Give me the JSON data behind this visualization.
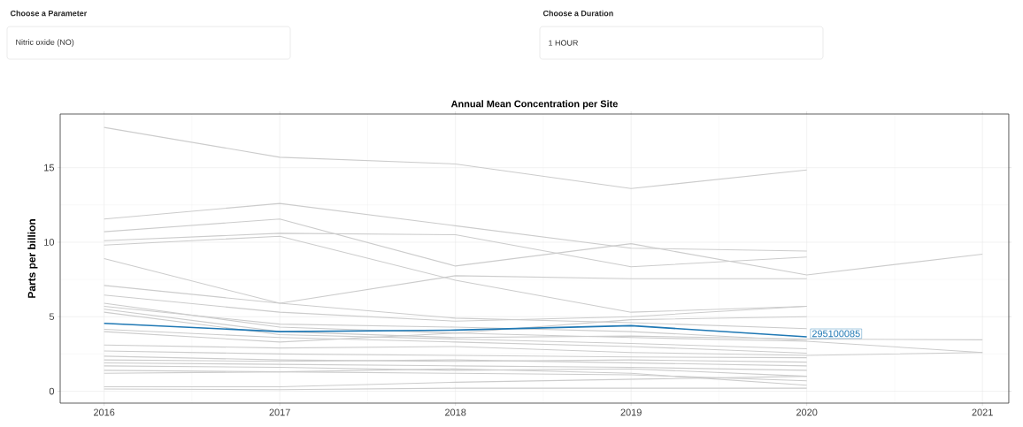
{
  "chart_data": {
    "type": "line",
    "title": "Annual Mean Concentration per Site",
    "ylabel": "Parts per billion",
    "annotations": [
      "Choose a Parameter",
      "Nitric oxide (NO)",
      "Choose a Duration",
      "1 HOUR"
    ],
    "xlim": [
      2015.75,
      2021.15
    ],
    "ylim": [
      -0.8,
      18.6
    ],
    "xticks": [
      2016,
      2017,
      2018,
      2019,
      2020,
      2021
    ],
    "yticks": [
      0,
      5,
      10,
      15
    ],
    "grid": true,
    "series": [
      {
        "color": "#cccccc",
        "x": [
          2016,
          2017,
          2018,
          2019,
          2020
        ],
        "values": [
          17.7,
          15.7,
          15.25,
          13.6,
          14.85
        ]
      },
      {
        "color": "#cccccc",
        "x": [
          2016,
          2017,
          2018,
          2019,
          2020
        ],
        "values": [
          11.55,
          12.6,
          11.1,
          9.6,
          9.4
        ]
      },
      {
        "color": "#cccccc",
        "x": [
          2016,
          2017,
          2018,
          2019,
          2020,
          2021
        ],
        "values": [
          10.7,
          11.55,
          8.4,
          9.9,
          7.8,
          9.2
        ]
      },
      {
        "color": "#cccccc",
        "x": [
          2016,
          2017,
          2018,
          2019,
          2020
        ],
        "values": [
          10.1,
          10.6,
          10.5,
          8.35,
          9.0
        ]
      },
      {
        "color": "#cccccc",
        "x": [
          2016,
          2017,
          2018,
          2019,
          2020
        ],
        "values": [
          9.8,
          10.4,
          7.45,
          5.3,
          5.7
        ]
      },
      {
        "color": "#cccccc",
        "x": [
          2016,
          2017,
          2018,
          2019,
          2020
        ],
        "values": [
          8.9,
          5.9,
          7.75,
          7.55,
          7.55
        ]
      },
      {
        "color": "#cccccc",
        "x": [
          2016,
          2017,
          2018,
          2019,
          2020
        ],
        "values": [
          7.1,
          5.9,
          4.9,
          4.6,
          4.2
        ]
      },
      {
        "color": "#cccccc",
        "x": [
          2016,
          2017,
          2018,
          2019,
          2020
        ],
        "values": [
          6.45,
          5.3,
          4.7,
          5.0,
          5.7
        ]
      },
      {
        "color": "#cccccc",
        "x": [
          2016,
          2017,
          2018,
          2019,
          2020
        ],
        "values": [
          5.9,
          4.3,
          3.9,
          4.8,
          5.0
        ]
      },
      {
        "color": "#cccccc",
        "x": [
          2016,
          2017,
          2018,
          2019,
          2020
        ],
        "values": [
          5.7,
          4.5,
          4.3,
          4.0,
          3.4
        ]
      },
      {
        "color": "#cccccc",
        "x": [
          2016,
          2017,
          2018,
          2019,
          2020,
          2021
        ],
        "values": [
          5.5,
          4.0,
          3.6,
          3.7,
          3.5,
          3.45
        ]
      },
      {
        "color": "#cccccc",
        "x": [
          2016,
          2017,
          2018,
          2019,
          2020
        ],
        "values": [
          5.3,
          3.8,
          3.5,
          3.2,
          2.85
        ]
      },
      {
        "color": "#cccccc",
        "x": [
          2016,
          2017,
          2018,
          2019,
          2020
        ],
        "values": [
          4.15,
          3.6,
          3.3,
          3.0,
          2.55
        ]
      },
      {
        "color": "#cccccc",
        "x": [
          2016,
          2017,
          2018,
          2019,
          2020,
          2021
        ],
        "values": [
          4.0,
          3.3,
          3.9,
          3.6,
          3.35,
          2.6
        ]
      },
      {
        "color": "#cccccc",
        "x": [
          2016,
          2017,
          2018,
          2019,
          2020,
          2021
        ],
        "values": [
          3.1,
          2.9,
          3.0,
          2.6,
          2.4,
          2.6
        ]
      },
      {
        "color": "#cccccc",
        "x": [
          2016,
          2017,
          2018,
          2019,
          2020
        ],
        "values": [
          2.7,
          2.5,
          2.4,
          2.3,
          2.25
        ]
      },
      {
        "color": "#cccccc",
        "x": [
          2016,
          2017,
          2018,
          2019,
          2020
        ],
        "values": [
          2.35,
          2.1,
          2.0,
          2.1,
          1.95
        ]
      },
      {
        "color": "#cccccc",
        "x": [
          2016,
          2017,
          2018,
          2019,
          2020
        ],
        "values": [
          2.1,
          2.0,
          2.1,
          1.9,
          1.7
        ]
      },
      {
        "color": "#cccccc",
        "x": [
          2016,
          2017,
          2018,
          2019,
          2020
        ],
        "values": [
          1.9,
          1.8,
          1.7,
          1.6,
          1.4
        ]
      },
      {
        "color": "#cccccc",
        "x": [
          2016,
          2017,
          2018,
          2019,
          2020
        ],
        "values": [
          1.7,
          1.6,
          1.4,
          1.5,
          1.0
        ]
      },
      {
        "color": "#cccccc",
        "x": [
          2016,
          2017,
          2018,
          2019,
          2020
        ],
        "values": [
          1.4,
          1.3,
          1.2,
          1.1,
          0.7
        ]
      },
      {
        "color": "#cccccc",
        "x": [
          2016,
          2017,
          2018,
          2019,
          2020
        ],
        "values": [
          1.2,
          1.3,
          1.5,
          1.2,
          0.4
        ]
      },
      {
        "color": "#cccccc",
        "x": [
          2016,
          2017,
          2018,
          2019,
          2020
        ],
        "values": [
          0.3,
          0.3,
          0.6,
          0.8,
          1.0
        ]
      },
      {
        "color": "#cccccc",
        "x": [
          2016,
          2017,
          2018,
          2019,
          2020
        ],
        "values": [
          0.15,
          0.1,
          0.2,
          0.2,
          0.2
        ]
      },
      {
        "name": "295100085",
        "color": "#1f78b4",
        "x": [
          2016,
          2017,
          2018,
          2019,
          2020
        ],
        "values": [
          4.55,
          4.0,
          4.1,
          4.4,
          3.65
        ]
      }
    ]
  }
}
